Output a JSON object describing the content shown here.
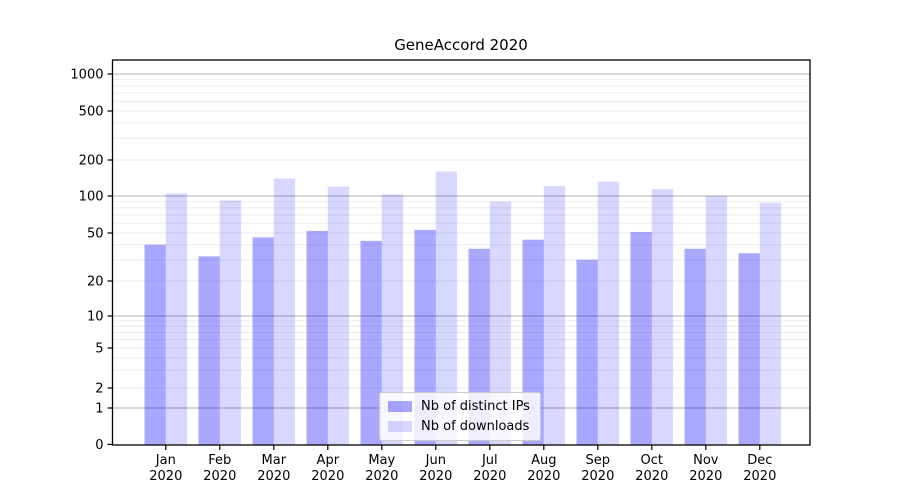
{
  "title": "GeneAccord 2020",
  "chart_data": {
    "type": "bar",
    "title": "GeneAccord 2020",
    "categories": [
      "Jan",
      "Feb",
      "Mar",
      "Apr",
      "May",
      "Jun",
      "Jul",
      "Aug",
      "Sep",
      "Oct",
      "Nov",
      "Dec"
    ],
    "category_year": "2020",
    "series": [
      {
        "name": "Nb of distinct IPs",
        "color": "rgba(0,0,255,0.34)",
        "values": [
          40,
          32,
          46,
          52,
          43,
          53,
          37,
          44,
          30,
          51,
          37,
          34
        ]
      },
      {
        "name": "Nb of downloads",
        "color": "rgba(0,0,255,0.155)",
        "values": [
          105,
          92,
          140,
          120,
          103,
          160,
          90,
          121,
          132,
          114,
          100,
          88
        ]
      }
    ],
    "xlabel": "",
    "ylabel": "",
    "yscale": "symlog",
    "yticks": [
      0,
      1,
      2,
      5,
      10,
      20,
      50,
      100,
      200,
      500,
      1000
    ],
    "ylim": [
      0,
      1300
    ],
    "grid": "on",
    "legend_position": "lower center"
  },
  "colors": {
    "background": "#ffffff",
    "axis": "#000000",
    "major_grid": "#b0b0b0",
    "minor_grid": "#ebebeb",
    "legend_border": "#cccccc",
    "text": "#000000"
  }
}
